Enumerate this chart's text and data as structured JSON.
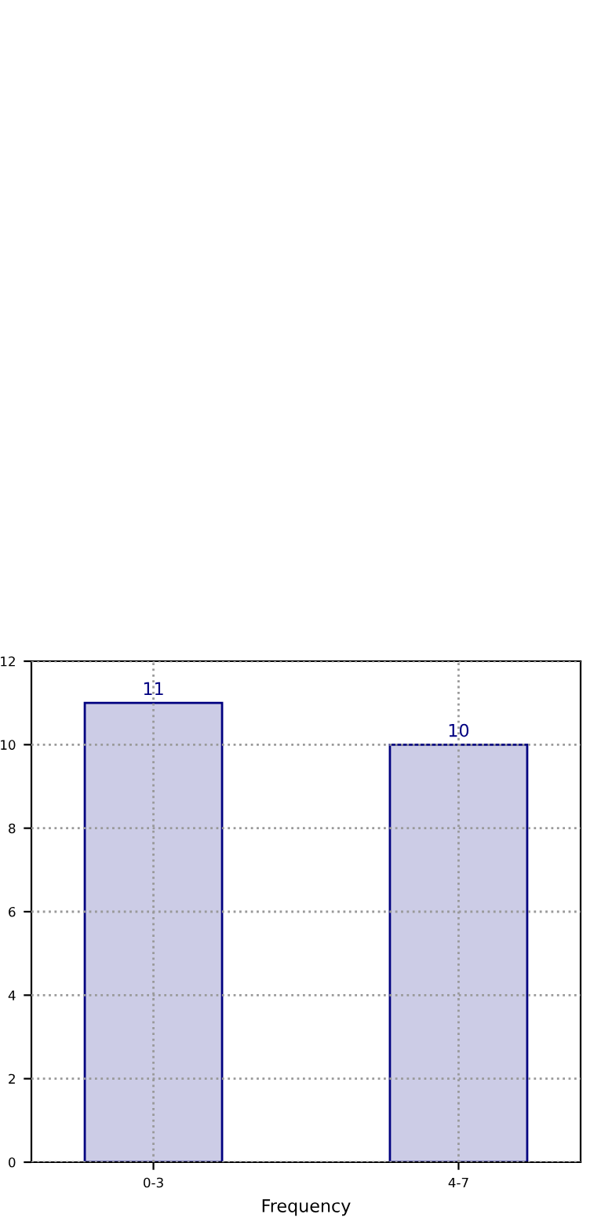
{
  "chart_data": {
    "type": "bar",
    "xlabel": "Frequency",
    "categories": [
      "0-3",
      "4-7"
    ],
    "values": [
      11,
      10
    ],
    "color": "#cccce6",
    "ylim": [
      0,
      12
    ],
    "yticks": [
      0,
      2,
      4,
      6,
      8,
      10,
      12
    ],
    "grid": true,
    "data_labels": true
  }
}
